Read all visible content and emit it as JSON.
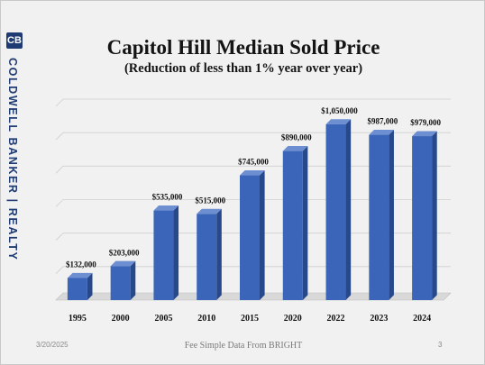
{
  "brand": {
    "logo_glyph": "CB",
    "name": "COLDWELL BANKER | REALTY",
    "color": "#1f3b73"
  },
  "chart_data": {
    "type": "bar",
    "title": "Capitol Hill Median Sold Price",
    "subtitle": "(Reduction of less than 1% year over year)",
    "categories": [
      "1995",
      "2000",
      "2005",
      "2010",
      "2015",
      "2020",
      "2022",
      "2023",
      "2024"
    ],
    "values": [
      132000,
      203000,
      535000,
      515000,
      745000,
      890000,
      1050000,
      987000,
      979000
    ],
    "data_labels": [
      "$132,000",
      "$203,000",
      "$535,000",
      "$515,000",
      "$745,000",
      "$890,000",
      "$1,050,000",
      "$987,000",
      "$979,000"
    ],
    "ylim": [
      0,
      1200000
    ],
    "y_gridlines": [
      0,
      200000,
      400000,
      600000,
      800000,
      1000000,
      1200000
    ],
    "y_tick_labels_shown": false,
    "grid": true,
    "bar_style": "3d",
    "bar_color": "#3a65b8"
  },
  "footer": {
    "date": "3/20/2025",
    "source": "Fee Simple Data From BRIGHT",
    "page": "3"
  }
}
